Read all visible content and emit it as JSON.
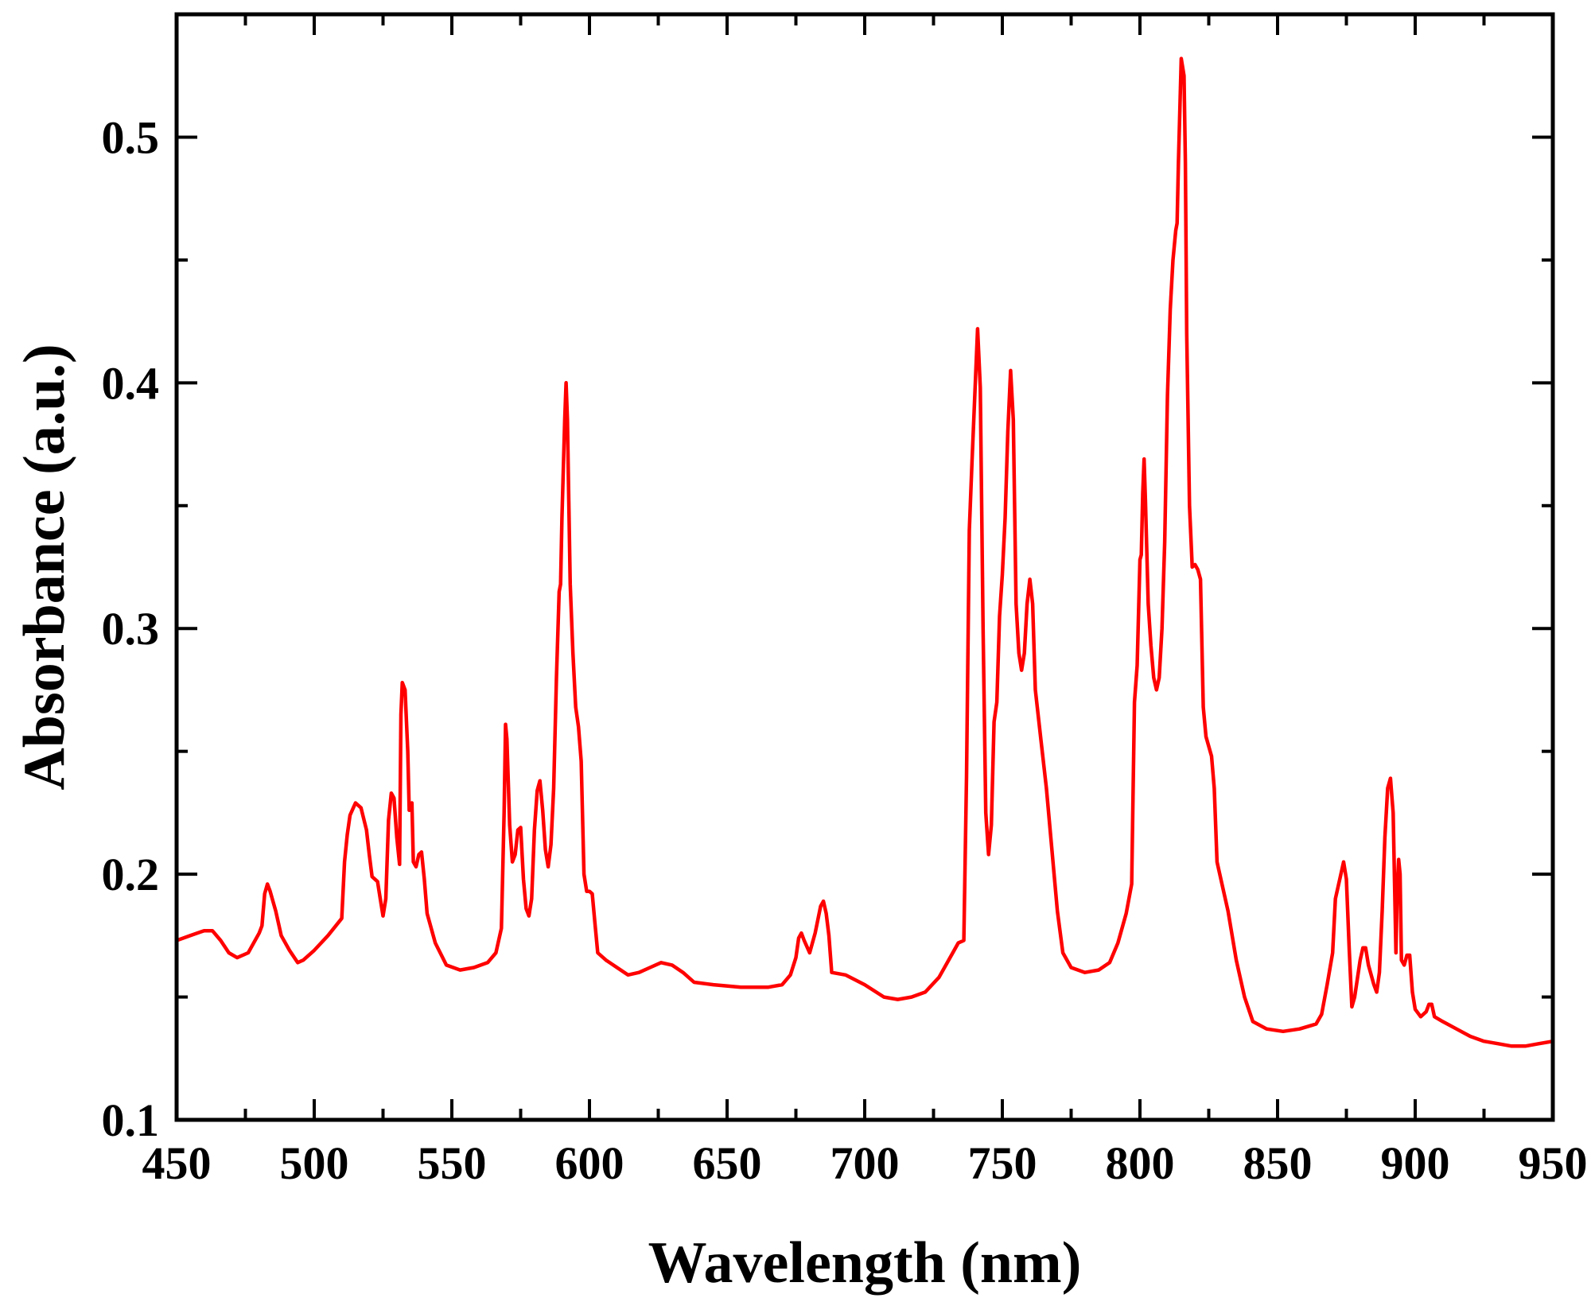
{
  "chart_data": {
    "type": "line",
    "title": "",
    "xlabel": "Wavelength (nm)",
    "ylabel": "Absorbance (a.u.)",
    "xlim": [
      450,
      950
    ],
    "ylim": [
      0.1,
      0.55
    ],
    "x_ticks": [
      450,
      500,
      550,
      600,
      650,
      700,
      750,
      800,
      850,
      900,
      950
    ],
    "x_tick_labels": [
      "450",
      "500",
      "550",
      "600",
      "650",
      "700",
      "750",
      "800",
      "850",
      "900",
      "950"
    ],
    "y_ticks": [
      0.1,
      0.2,
      0.3,
      0.4,
      0.5
    ],
    "y_tick_labels": [
      "0.1",
      "0.2",
      "0.3",
      "0.4",
      "0.5"
    ],
    "grid": false,
    "legend": "none",
    "series_color": "#ff0000",
    "series": [
      {
        "points": [
          [
            450,
            0.173
          ],
          [
            455,
            0.175
          ],
          [
            460,
            0.177
          ],
          [
            463,
            0.177
          ],
          [
            466,
            0.173
          ],
          [
            469,
            0.168
          ],
          [
            472,
            0.166
          ],
          [
            476,
            0.168
          ],
          [
            480,
            0.176
          ],
          [
            481,
            0.179
          ],
          [
            482,
            0.192
          ],
          [
            483,
            0.196
          ],
          [
            484,
            0.193
          ],
          [
            486,
            0.185
          ],
          [
            488,
            0.175
          ],
          [
            491,
            0.169
          ],
          [
            494,
            0.164
          ],
          [
            496,
            0.165
          ],
          [
            500,
            0.169
          ],
          [
            505,
            0.175
          ],
          [
            510,
            0.182
          ],
          [
            511,
            0.205
          ],
          [
            512,
            0.216
          ],
          [
            513,
            0.224
          ],
          [
            515,
            0.229
          ],
          [
            517,
            0.227
          ],
          [
            519,
            0.218
          ],
          [
            520,
            0.208
          ],
          [
            521,
            0.199
          ],
          [
            523,
            0.197
          ],
          [
            524,
            0.19
          ],
          [
            525,
            0.183
          ],
          [
            526,
            0.19
          ],
          [
            527,
            0.222
          ],
          [
            528,
            0.233
          ],
          [
            529,
            0.231
          ],
          [
            530,
            0.215
          ],
          [
            531,
            0.204
          ],
          [
            531.5,
            0.265
          ],
          [
            532,
            0.278
          ],
          [
            533,
            0.275
          ],
          [
            534,
            0.25
          ],
          [
            534.5,
            0.226
          ],
          [
            535,
            0.228
          ],
          [
            535.5,
            0.229
          ],
          [
            536,
            0.205
          ],
          [
            537,
            0.203
          ],
          [
            538,
            0.208
          ],
          [
            539,
            0.209
          ],
          [
            540,
            0.198
          ],
          [
            541,
            0.184
          ],
          [
            544,
            0.172
          ],
          [
            548,
            0.163
          ],
          [
            553,
            0.161
          ],
          [
            558,
            0.162
          ],
          [
            563,
            0.164
          ],
          [
            566,
            0.168
          ],
          [
            568,
            0.178
          ],
          [
            569,
            0.225
          ],
          [
            569.5,
            0.261
          ],
          [
            570,
            0.255
          ],
          [
            571,
            0.22
          ],
          [
            572,
            0.205
          ],
          [
            573,
            0.208
          ],
          [
            574,
            0.218
          ],
          [
            575,
            0.219
          ],
          [
            576,
            0.198
          ],
          [
            577,
            0.186
          ],
          [
            578,
            0.183
          ],
          [
            579,
            0.19
          ],
          [
            580,
            0.218
          ],
          [
            581,
            0.234
          ],
          [
            582,
            0.238
          ],
          [
            583,
            0.226
          ],
          [
            584,
            0.21
          ],
          [
            585,
            0.203
          ],
          [
            586,
            0.212
          ],
          [
            587,
            0.235
          ],
          [
            588,
            0.28
          ],
          [
            589,
            0.315
          ],
          [
            589.5,
            0.318
          ],
          [
            590,
            0.345
          ],
          [
            591,
            0.385
          ],
          [
            591.5,
            0.4
          ],
          [
            592,
            0.385
          ],
          [
            592.5,
            0.352
          ],
          [
            593,
            0.318
          ],
          [
            594,
            0.29
          ],
          [
            595,
            0.268
          ],
          [
            596,
            0.26
          ],
          [
            597,
            0.246
          ],
          [
            598,
            0.2
          ],
          [
            599,
            0.193
          ],
          [
            600,
            0.193
          ],
          [
            601,
            0.192
          ],
          [
            602,
            0.18
          ],
          [
            603,
            0.168
          ],
          [
            606,
            0.165
          ],
          [
            610,
            0.162
          ],
          [
            614,
            0.159
          ],
          [
            618,
            0.16
          ],
          [
            622,
            0.162
          ],
          [
            626,
            0.164
          ],
          [
            630,
            0.163
          ],
          [
            634,
            0.16
          ],
          [
            638,
            0.156
          ],
          [
            645,
            0.155
          ],
          [
            655,
            0.154
          ],
          [
            665,
            0.154
          ],
          [
            670,
            0.155
          ],
          [
            673,
            0.159
          ],
          [
            675,
            0.166
          ],
          [
            676,
            0.174
          ],
          [
            677,
            0.176
          ],
          [
            678,
            0.173
          ],
          [
            680,
            0.168
          ],
          [
            682,
            0.176
          ],
          [
            684,
            0.187
          ],
          [
            685,
            0.189
          ],
          [
            686,
            0.184
          ],
          [
            687,
            0.175
          ],
          [
            688,
            0.16
          ],
          [
            693,
            0.159
          ],
          [
            700,
            0.155
          ],
          [
            707,
            0.15
          ],
          [
            712,
            0.149
          ],
          [
            717,
            0.15
          ],
          [
            722,
            0.152
          ],
          [
            727,
            0.158
          ],
          [
            732,
            0.168
          ],
          [
            734,
            0.172
          ],
          [
            736,
            0.173
          ],
          [
            737,
            0.24
          ],
          [
            738,
            0.34
          ],
          [
            739,
            0.368
          ],
          [
            740,
            0.395
          ],
          [
            741,
            0.422
          ],
          [
            742,
            0.398
          ],
          [
            743,
            0.3
          ],
          [
            744,
            0.225
          ],
          [
            745,
            0.208
          ],
          [
            746,
            0.22
          ],
          [
            747,
            0.262
          ],
          [
            748,
            0.27
          ],
          [
            749,
            0.305
          ],
          [
            750,
            0.322
          ],
          [
            751,
            0.345
          ],
          [
            752,
            0.38
          ],
          [
            753,
            0.405
          ],
          [
            754,
            0.385
          ],
          [
            755,
            0.31
          ],
          [
            756,
            0.29
          ],
          [
            757,
            0.283
          ],
          [
            758,
            0.29
          ],
          [
            759,
            0.31
          ],
          [
            760,
            0.32
          ],
          [
            761,
            0.31
          ],
          [
            762,
            0.275
          ],
          [
            764,
            0.255
          ],
          [
            766,
            0.235
          ],
          [
            768,
            0.21
          ],
          [
            770,
            0.185
          ],
          [
            772,
            0.168
          ],
          [
            775,
            0.162
          ],
          [
            780,
            0.16
          ],
          [
            785,
            0.161
          ],
          [
            789,
            0.164
          ],
          [
            792,
            0.172
          ],
          [
            795,
            0.184
          ],
          [
            797,
            0.196
          ],
          [
            798,
            0.27
          ],
          [
            799,
            0.285
          ],
          [
            800,
            0.328
          ],
          [
            800.5,
            0.33
          ],
          [
            801,
            0.355
          ],
          [
            801.5,
            0.369
          ],
          [
            802,
            0.352
          ],
          [
            803,
            0.31
          ],
          [
            804,
            0.293
          ],
          [
            805,
            0.28
          ],
          [
            806,
            0.275
          ],
          [
            807,
            0.28
          ],
          [
            808,
            0.3
          ],
          [
            809,
            0.335
          ],
          [
            810,
            0.395
          ],
          [
            811,
            0.43
          ],
          [
            812,
            0.45
          ],
          [
            813,
            0.462
          ],
          [
            813.5,
            0.465
          ],
          [
            814,
            0.49
          ],
          [
            815,
            0.532
          ],
          [
            816,
            0.525
          ],
          [
            816.5,
            0.49
          ],
          [
            817,
            0.42
          ],
          [
            818,
            0.35
          ],
          [
            819,
            0.325
          ],
          [
            820,
            0.326
          ],
          [
            821,
            0.324
          ],
          [
            822,
            0.32
          ],
          [
            823,
            0.268
          ],
          [
            824,
            0.256
          ],
          [
            826,
            0.248
          ],
          [
            827,
            0.235
          ],
          [
            828,
            0.205
          ],
          [
            830,
            0.195
          ],
          [
            832,
            0.185
          ],
          [
            835,
            0.165
          ],
          [
            838,
            0.15
          ],
          [
            841,
            0.14
          ],
          [
            846,
            0.137
          ],
          [
            852,
            0.136
          ],
          [
            858,
            0.137
          ],
          [
            864,
            0.139
          ],
          [
            866,
            0.143
          ],
          [
            868,
            0.155
          ],
          [
            870,
            0.168
          ],
          [
            871,
            0.19
          ],
          [
            873,
            0.2
          ],
          [
            874,
            0.205
          ],
          [
            875,
            0.198
          ],
          [
            876,
            0.17
          ],
          [
            877,
            0.146
          ],
          [
            878,
            0.15
          ],
          [
            880,
            0.165
          ],
          [
            881,
            0.17
          ],
          [
            882,
            0.17
          ],
          [
            883,
            0.163
          ],
          [
            885,
            0.155
          ],
          [
            886,
            0.152
          ],
          [
            887,
            0.16
          ],
          [
            888,
            0.185
          ],
          [
            889,
            0.215
          ],
          [
            890,
            0.235
          ],
          [
            891,
            0.239
          ],
          [
            892,
            0.225
          ],
          [
            893,
            0.168
          ],
          [
            893.5,
            0.195
          ],
          [
            894,
            0.206
          ],
          [
            894.5,
            0.2
          ],
          [
            895,
            0.165
          ],
          [
            896,
            0.163
          ],
          [
            897,
            0.167
          ],
          [
            898,
            0.167
          ],
          [
            899,
            0.152
          ],
          [
            900,
            0.145
          ],
          [
            902,
            0.142
          ],
          [
            904,
            0.144
          ],
          [
            905,
            0.147
          ],
          [
            906,
            0.147
          ],
          [
            907,
            0.142
          ],
          [
            910,
            0.14
          ],
          [
            915,
            0.137
          ],
          [
            920,
            0.134
          ],
          [
            925,
            0.132
          ],
          [
            930,
            0.131
          ],
          [
            935,
            0.13
          ],
          [
            940,
            0.13
          ],
          [
            945,
            0.131
          ],
          [
            950,
            0.132
          ],
          [
            955,
            0.132
          ],
          [
            960,
            0.131
          ],
          [
            965,
            0.13
          ]
        ]
      }
    ]
  }
}
